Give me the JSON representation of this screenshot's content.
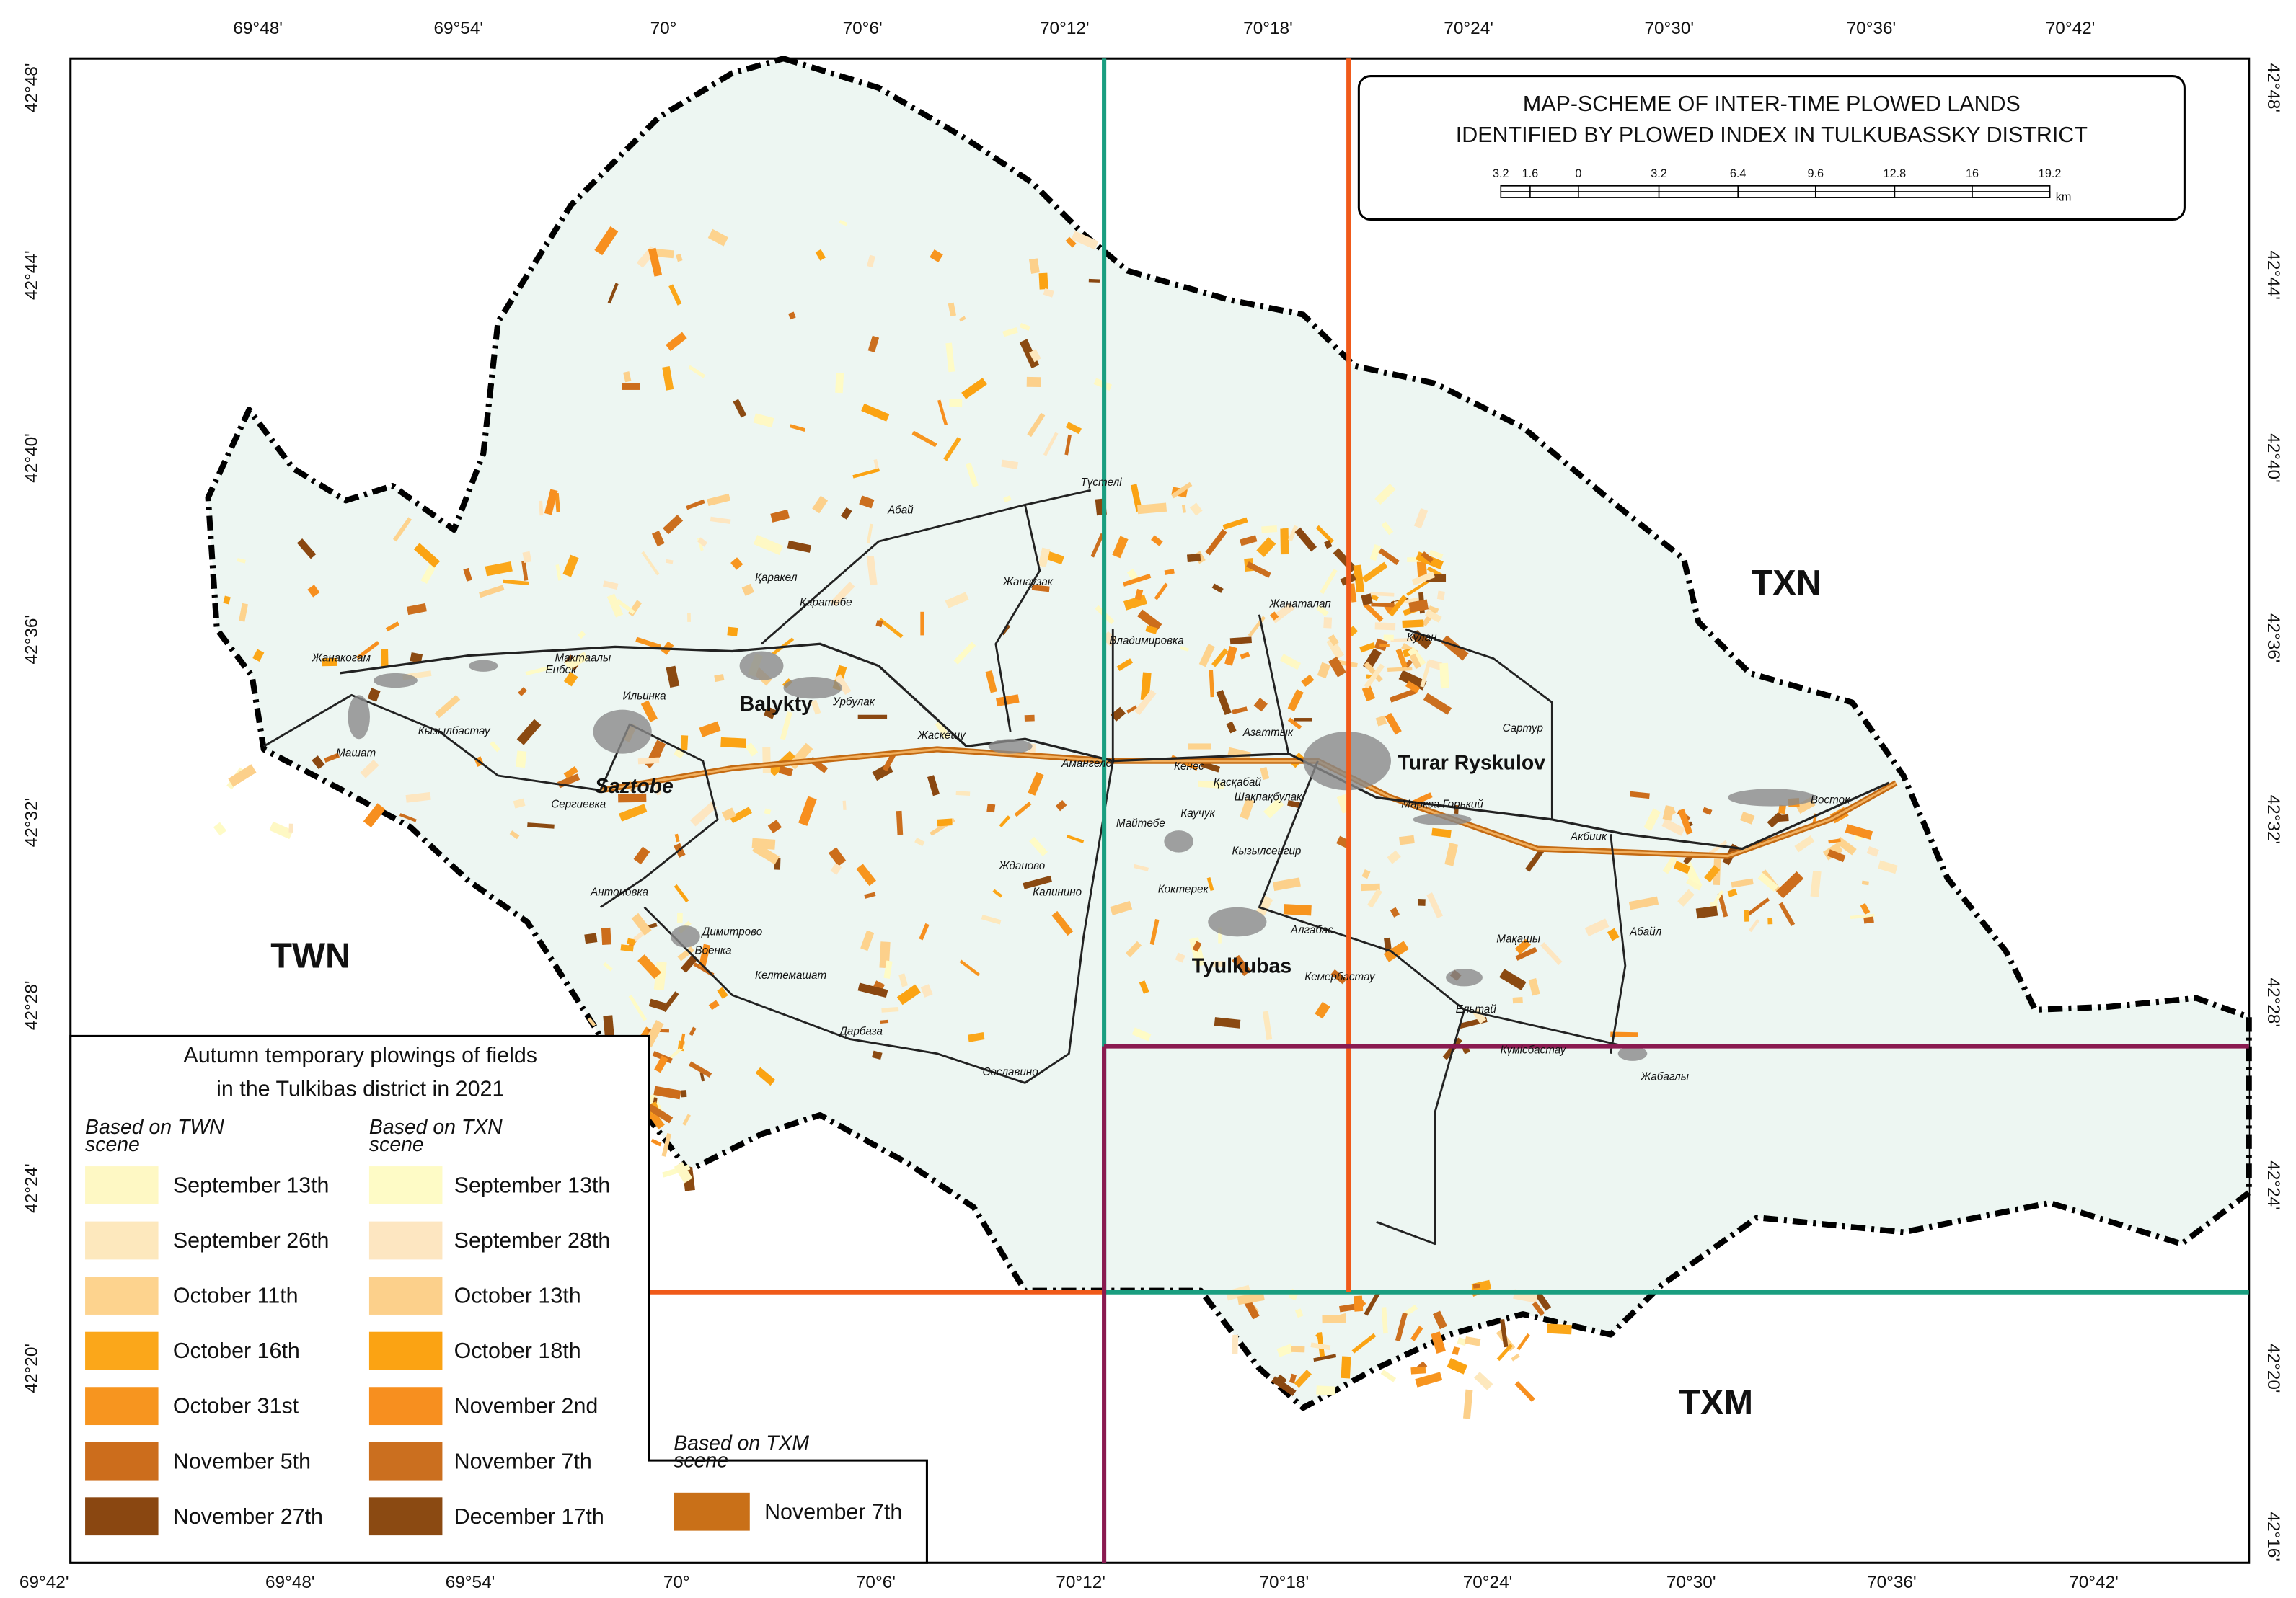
{
  "axes": {
    "top": [
      "69°48'",
      "69°54'",
      "70°",
      "70°6'",
      "70°12'",
      "70°18'",
      "70°24'",
      "70°30'",
      "70°36'",
      "70°42'"
    ],
    "bottom": [
      "69°42'",
      "69°48'",
      "69°54'",
      "70°",
      "70°6'",
      "70°12'",
      "70°18'",
      "70°24'",
      "70°30'",
      "70°36'",
      "70°42'"
    ],
    "left": [
      "42°48'",
      "42°44'",
      "42°40'",
      "42°36'",
      "42°32'",
      "42°28'",
      "42°24'",
      "42°20'"
    ],
    "right": [
      "42°48'",
      "42°44'",
      "42°40'",
      "42°36'",
      "42°32'",
      "42°28'",
      "42°24'",
      "42°20'",
      "42°16'"
    ]
  },
  "title": {
    "lines": [
      "MAP-SCHEME OF INTER-TIME PLOWED LANDS",
      "IDENTIFIED BY PLOWED INDEX IN TULKUBASSKY DISTRICT"
    ]
  },
  "scale_bar": {
    "labels": [
      "3.2",
      "1.6",
      "0",
      "3.2",
      "6.4",
      "9.6",
      "12.8",
      "16",
      "19.2"
    ],
    "unit": "km"
  },
  "scenes": [
    "TWN",
    "TXN",
    "TXM"
  ],
  "towns": [
    "Balykty",
    "Saztobe",
    "Turar Ryskulov",
    "Tyulkubas"
  ],
  "villages": [
    "Жанакогам",
    "Енбек",
    "Мактаалы",
    "Ильинка",
    "Кызылбастау",
    "Машат",
    "Сергиевка",
    "Антоновка",
    "Димитрово",
    "Военка",
    "Келтемашат",
    "Дарбаза",
    "Сеславино",
    "Урбулак",
    "Жаскешу",
    "Қаратөбе",
    "Абай",
    "Түстелі",
    "Жанаузак",
    "Жанаталап",
    "Владимировка",
    "Азаттык",
    "Амангелді",
    "Кенес",
    "Қасқабай",
    "Шақпақбулак",
    "Майтөбе",
    "Каучук",
    "Кызылсенгир",
    "Жданово",
    "Калинино",
    "Коктерек",
    "Алгабас",
    "Кемербастау",
    "Ельтай",
    "Күмісбастау",
    "Жабаглы",
    "Абайл",
    "Мақашы",
    "Акбиик",
    "Маркса Горький",
    "Кулан",
    "Сартур",
    "Восток",
    "Қаракөл"
  ],
  "legend": {
    "title_lines": [
      "Autumn temporary plowings of fields",
      "in the Tulkibas district in 2021"
    ],
    "groups": [
      {
        "heading_lines": [
          "Based on TWN",
          "scene"
        ],
        "items": [
          {
            "label": "September 13th",
            "color": "#fef8c4"
          },
          {
            "label": "September 26th",
            "color": "#fde8bd"
          },
          {
            "label": "October 11th",
            "color": "#fdd38e"
          },
          {
            "label": "October 16th",
            "color": "#fba71a"
          },
          {
            "label": "October 31st",
            "color": "#f7951f"
          },
          {
            "label": "November 5th",
            "color": "#cc6d1c"
          },
          {
            "label": "November 27th",
            "color": "#8a4711"
          }
        ]
      },
      {
        "heading_lines": [
          "Based on TXN",
          "scene"
        ],
        "items": [
          {
            "label": "September 13th",
            "color": "#fefbc6"
          },
          {
            "label": "September 28th",
            "color": "#fde6c1"
          },
          {
            "label": "October 13th",
            "color": "#fcd08b"
          },
          {
            "label": "October 18th",
            "color": "#fba313"
          },
          {
            "label": "November 2nd",
            "color": "#f78f1f"
          },
          {
            "label": "November 7th",
            "color": "#cb6f1f"
          },
          {
            "label": "December 17th",
            "color": "#8b4a12"
          }
        ]
      },
      {
        "heading_lines": [
          "Based on TXM",
          "scene"
        ],
        "items": [
          {
            "label": "November 7th",
            "color": "#c97018"
          }
        ]
      }
    ]
  }
}
